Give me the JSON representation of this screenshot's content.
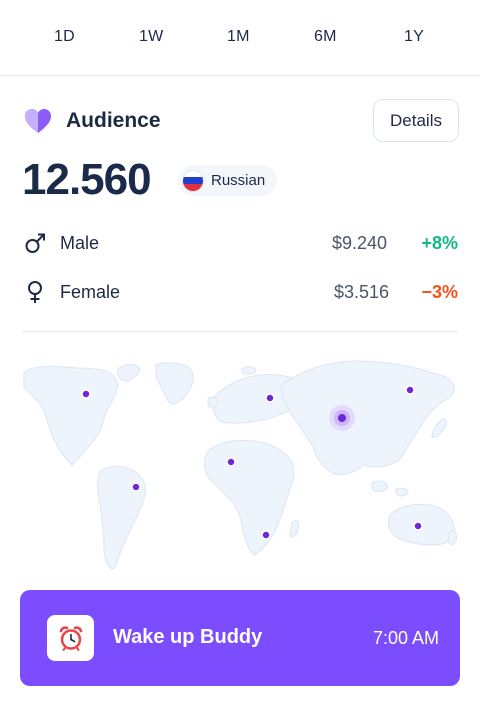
{
  "range_tabs": [
    {
      "label": "1D"
    },
    {
      "label": "1W"
    },
    {
      "label": "1M"
    },
    {
      "label": "6M"
    },
    {
      "label": "1Y"
    }
  ],
  "audience": {
    "icon": "heart-icon",
    "title": "Audience",
    "details_label": "Details",
    "total": "12.560",
    "country": {
      "label": "Russian",
      "flag": "russia-flag",
      "flag_colors": [
        "#ffffff",
        "#1f3fd1",
        "#e0323c"
      ]
    }
  },
  "genders": [
    {
      "icon": "male-icon",
      "label": "Male",
      "amount": "$9.240",
      "change": "+8%",
      "change_color": "#12b886"
    },
    {
      "icon": "female-icon",
      "label": "Female",
      "amount": "$3.516",
      "change": "−3%",
      "change_color": "#f0541e"
    }
  ],
  "map": {
    "icon": "world-map",
    "land_color": "#eef4fb",
    "marker_color": "#6d28d9",
    "highlight_marker": "asia-highlight-marker"
  },
  "alarm": {
    "icon": "alarm-clock-icon",
    "title": "Wake up Buddy",
    "time": "7:00 AM",
    "background": "#7c4dff"
  }
}
